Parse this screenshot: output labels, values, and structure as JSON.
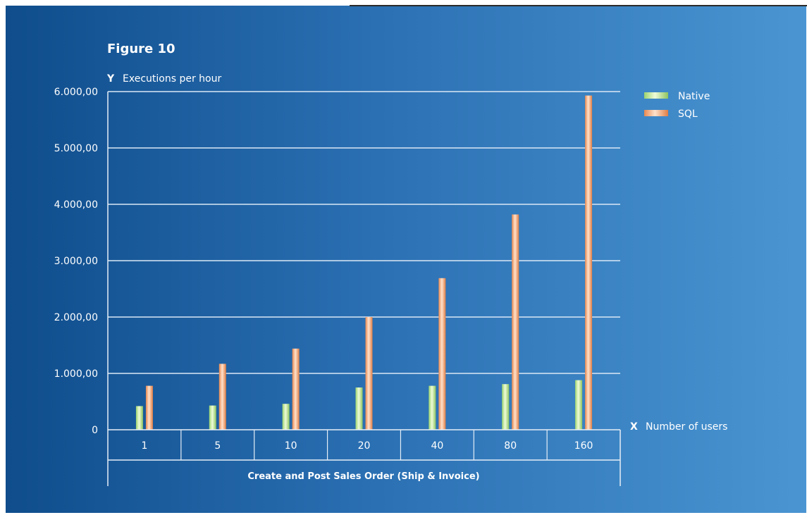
{
  "chart_data": {
    "type": "bar",
    "title": "Figure 10",
    "y_axis_letter": "Y",
    "ylabel": "Executions per hour",
    "x_axis_letter": "X",
    "x_axis_name": "Number of users",
    "xlabel": "Create and Post Sales Order (Ship & Invoice)",
    "categories": [
      "1",
      "5",
      "10",
      "20",
      "40",
      "80",
      "160"
    ],
    "series": [
      {
        "name": "Native",
        "values": [
          420,
          430,
          460,
          750,
          780,
          810,
          880
        ],
        "color": "#c9eea4"
      },
      {
        "name": "SQL",
        "values": [
          780,
          1170,
          1440,
          2000,
          2690,
          3820,
          5930
        ],
        "color": "#f6b98c"
      }
    ],
    "y_ticks": [
      {
        "value": 0,
        "label": "0"
      },
      {
        "value": 1000,
        "label": "1.000,00"
      },
      {
        "value": 2000,
        "label": "2.000,00"
      },
      {
        "value": 3000,
        "label": "3.000,00"
      },
      {
        "value": 4000,
        "label": "4.000,00"
      },
      {
        "value": 5000,
        "label": "5.000,00"
      },
      {
        "value": 6000,
        "label": "6.000,00"
      }
    ],
    "ylim": [
      0,
      6000
    ],
    "grid": true,
    "legend_position": "top-right"
  }
}
